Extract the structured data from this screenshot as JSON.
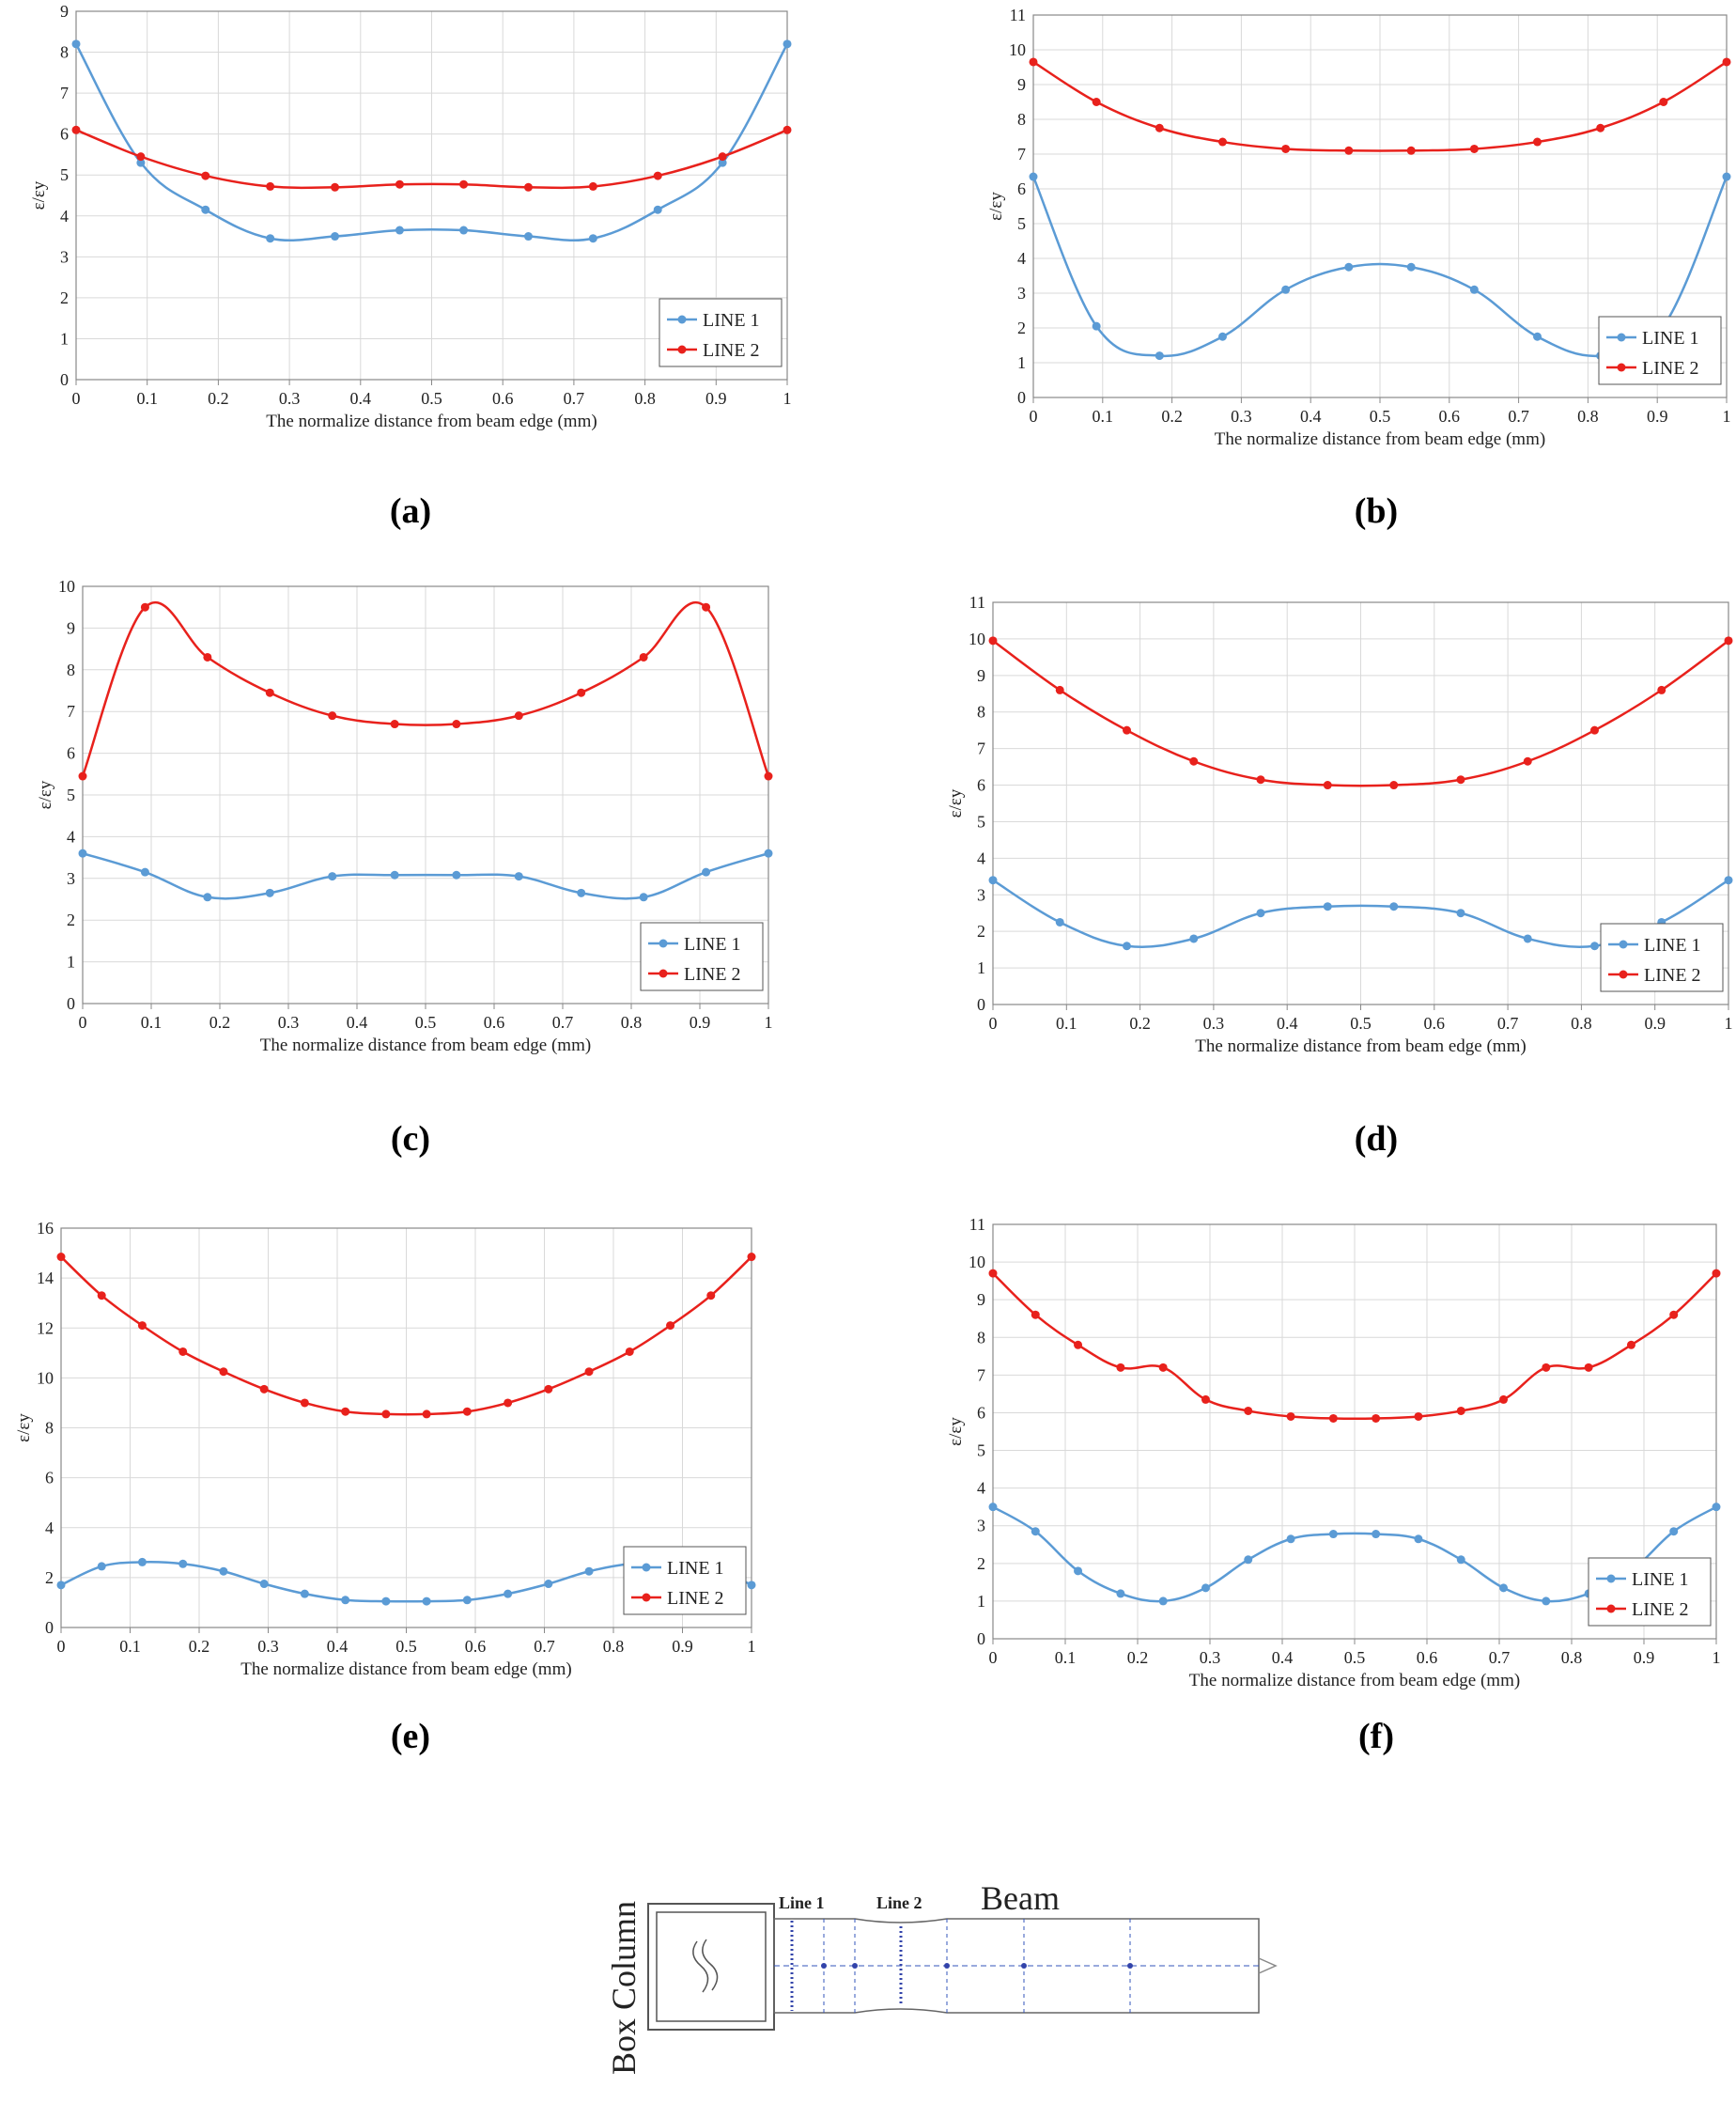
{
  "colors": {
    "line1": "#5b9bd5",
    "line2": "#e8211c",
    "grid": "#d9d9d9",
    "axis": "#888888"
  },
  "chart_data": [
    {
      "type": "line",
      "caption": "(a)",
      "xlabel": "The normalize distance from beam edge (mm)",
      "ylabel": "ε/εy",
      "xlim": [
        0,
        1
      ],
      "ylim": [
        0,
        9
      ],
      "ystep": 1,
      "xticks": [
        "0",
        "0.1",
        "0.2",
        "0.3",
        "0.4",
        "0.5",
        "0.6",
        "0.7",
        "0.8",
        "0.9",
        "1"
      ],
      "legend_position": "bottom-right",
      "series": [
        {
          "name": "LINE 1",
          "x": [
            0,
            0.091,
            0.182,
            0.273,
            0.364,
            0.455,
            0.545,
            0.636,
            0.727,
            0.818,
            0.909,
            1
          ],
          "y": [
            8.2,
            5.3,
            4.15,
            3.45,
            3.5,
            3.65,
            3.65,
            3.5,
            3.45,
            4.15,
            5.3,
            8.2
          ]
        },
        {
          "name": "LINE 2",
          "x": [
            0,
            0.091,
            0.182,
            0.273,
            0.364,
            0.455,
            0.545,
            0.636,
            0.727,
            0.818,
            0.909,
            1
          ],
          "y": [
            6.1,
            5.45,
            4.98,
            4.72,
            4.7,
            4.77,
            4.77,
            4.7,
            4.72,
            4.98,
            5.45,
            6.1
          ]
        }
      ]
    },
    {
      "type": "line",
      "caption": "(b)",
      "xlabel": "The normalize distance from beam edge (mm)",
      "ylabel": "ε/εy",
      "xlim": [
        0,
        1
      ],
      "ylim": [
        0,
        11
      ],
      "ystep": 1,
      "xticks": [
        "0",
        "0.1",
        "0.2",
        "0.3",
        "0.4",
        "0.5",
        "0.6",
        "0.7",
        "0.8",
        "0.9",
        "1"
      ],
      "legend_position": "bottom-right",
      "series": [
        {
          "name": "LINE 1",
          "x": [
            0,
            0.091,
            0.182,
            0.273,
            0.364,
            0.455,
            0.545,
            0.636,
            0.727,
            0.818,
            0.909,
            1
          ],
          "y": [
            6.35,
            2.05,
            1.2,
            1.75,
            3.1,
            3.75,
            3.75,
            3.1,
            1.75,
            1.2,
            2.05,
            6.35
          ]
        },
        {
          "name": "LINE 2",
          "x": [
            0,
            0.091,
            0.182,
            0.273,
            0.364,
            0.455,
            0.545,
            0.636,
            0.727,
            0.818,
            0.909,
            1
          ],
          "y": [
            9.65,
            8.5,
            7.75,
            7.35,
            7.15,
            7.1,
            7.1,
            7.15,
            7.35,
            7.75,
            8.5,
            9.65
          ]
        }
      ]
    },
    {
      "type": "line",
      "caption": "(c)",
      "xlabel": "The normalize distance from beam edge (mm)",
      "ylabel": "ε/εy",
      "xlim": [
        0,
        1
      ],
      "ylim": [
        0,
        10
      ],
      "ystep": 1,
      "xticks": [
        "0",
        "0.1",
        "0.2",
        "0.3",
        "0.4",
        "0.5",
        "0.6",
        "0.7",
        "0.8",
        "0.9",
        "1"
      ],
      "legend_position": "bottom-right",
      "series": [
        {
          "name": "LINE 1",
          "x": [
            0,
            0.091,
            0.182,
            0.273,
            0.364,
            0.455,
            0.545,
            0.636,
            0.727,
            0.818,
            0.909,
            1
          ],
          "y": [
            3.6,
            3.15,
            2.55,
            2.65,
            3.05,
            3.08,
            3.08,
            3.05,
            2.65,
            2.55,
            3.15,
            3.6
          ]
        },
        {
          "name": "LINE 2",
          "x": [
            0,
            0.091,
            0.182,
            0.273,
            0.364,
            0.455,
            0.545,
            0.636,
            0.727,
            0.818,
            0.909,
            1
          ],
          "y": [
            5.45,
            9.5,
            8.3,
            7.45,
            6.9,
            6.7,
            6.7,
            6.9,
            7.45,
            8.3,
            9.5,
            5.45
          ]
        }
      ]
    },
    {
      "type": "line",
      "caption": "(d)",
      "xlabel": "The normalize distance from beam edge (mm)",
      "ylabel": "ε/εy",
      "xlim": [
        0,
        1
      ],
      "ylim": [
        0,
        11
      ],
      "ystep": 1,
      "xticks": [
        "0",
        "0.1",
        "0.2",
        "0.3",
        "0.4",
        "0.5",
        "0.6",
        "0.7",
        "0.8",
        "0.9",
        "1"
      ],
      "legend_position": "bottom-right",
      "series": [
        {
          "name": "LINE 1",
          "x": [
            0,
            0.091,
            0.182,
            0.273,
            0.364,
            0.455,
            0.545,
            0.636,
            0.727,
            0.818,
            0.909,
            1
          ],
          "y": [
            3.4,
            2.25,
            1.6,
            1.8,
            2.5,
            2.68,
            2.68,
            2.5,
            1.8,
            1.6,
            2.25,
            3.4
          ]
        },
        {
          "name": "LINE 2",
          "x": [
            0,
            0.091,
            0.182,
            0.273,
            0.364,
            0.455,
            0.545,
            0.636,
            0.727,
            0.818,
            0.909,
            1
          ],
          "y": [
            9.95,
            8.6,
            7.5,
            6.65,
            6.15,
            6.0,
            6.0,
            6.15,
            6.65,
            7.5,
            8.6,
            9.95
          ]
        }
      ]
    },
    {
      "type": "line",
      "caption": "(e)",
      "xlabel": "The normalize distance from beam edge (mm)",
      "ylabel": "ε/εy",
      "xlim": [
        0,
        1
      ],
      "ylim": [
        0,
        16
      ],
      "ystep": 2,
      "xticks": [
        "0",
        "0.1",
        "0.2",
        "0.3",
        "0.4",
        "0.5",
        "0.6",
        "0.7",
        "0.8",
        "0.9",
        "1"
      ],
      "legend_position": "bottom-right",
      "series": [
        {
          "name": "LINE 1",
          "x": [
            0,
            0.0588,
            0.1176,
            0.1765,
            0.2353,
            0.2941,
            0.3529,
            0.4118,
            0.4706,
            0.5294,
            0.5882,
            0.6471,
            0.7059,
            0.7647,
            0.8235,
            0.8824,
            0.9412,
            1
          ],
          "y": [
            1.7,
            2.45,
            2.62,
            2.55,
            2.25,
            1.75,
            1.35,
            1.1,
            1.05,
            1.05,
            1.1,
            1.35,
            1.75,
            2.25,
            2.55,
            2.62,
            2.45,
            1.7
          ]
        },
        {
          "name": "LINE 2",
          "x": [
            0,
            0.0588,
            0.1176,
            0.1765,
            0.2353,
            0.2941,
            0.3529,
            0.4118,
            0.4706,
            0.5294,
            0.5882,
            0.6471,
            0.7059,
            0.7647,
            0.8235,
            0.8824,
            0.9412,
            1
          ],
          "y": [
            14.85,
            13.3,
            12.1,
            11.05,
            10.25,
            9.55,
            9.0,
            8.65,
            8.55,
            8.55,
            8.65,
            9.0,
            9.55,
            10.25,
            11.05,
            12.1,
            13.3,
            14.85
          ]
        }
      ]
    },
    {
      "type": "line",
      "caption": "(f)",
      "xlabel": "The normalize distance from beam edge (mm)",
      "ylabel": "ε/εy",
      "xlim": [
        0,
        1
      ],
      "ylim": [
        0,
        11
      ],
      "ystep": 1,
      "xticks": [
        "0",
        "0.1",
        "0.2",
        "0.3",
        "0.4",
        "0.5",
        "0.6",
        "0.7",
        "0.8",
        "0.9",
        "1"
      ],
      "legend_position": "bottom-right",
      "series": [
        {
          "name": "LINE 1",
          "x": [
            0,
            0.0588,
            0.1176,
            0.1765,
            0.2353,
            0.2941,
            0.3529,
            0.4118,
            0.4706,
            0.5294,
            0.5882,
            0.6471,
            0.7059,
            0.7647,
            0.8235,
            0.8824,
            0.9412,
            1
          ],
          "y": [
            3.5,
            2.85,
            1.8,
            1.2,
            1.0,
            1.35,
            2.1,
            2.65,
            2.78,
            2.78,
            2.65,
            2.1,
            1.35,
            1.0,
            1.2,
            1.8,
            2.85,
            3.5
          ]
        },
        {
          "name": "LINE 2",
          "x": [
            0,
            0.0588,
            0.1176,
            0.1765,
            0.2353,
            0.2941,
            0.3529,
            0.4118,
            0.4706,
            0.5294,
            0.5882,
            0.6471,
            0.7059,
            0.7647,
            0.8235,
            0.8824,
            0.9412,
            1
          ],
          "y": [
            9.7,
            8.6,
            7.8,
            7.2,
            7.2,
            6.35,
            6.05,
            5.9,
            5.85,
            5.85,
            5.9,
            6.05,
            6.35,
            7.2,
            7.2,
            7.8,
            8.6,
            9.7
          ]
        }
      ]
    }
  ],
  "diagram": {
    "column_label": "Box Column",
    "line1_label": "Line 1",
    "line2_label": "Line 2",
    "beam_label": "Beam"
  }
}
